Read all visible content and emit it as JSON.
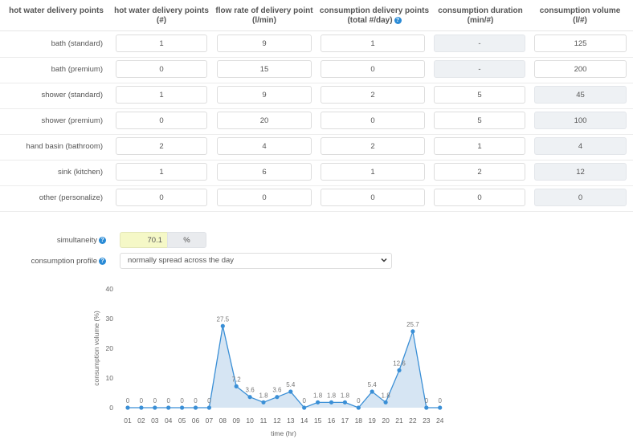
{
  "headers": {
    "col0": "hot water delivery points",
    "col1_l1": "hot water delivery points",
    "col1_l2": "(#)",
    "col2_l1": "flow rate of delivery point",
    "col2_l2": "(l/min)",
    "col3_l1": "consumption delivery points",
    "col3_l2": "(total #/day)",
    "col4_l1": "consumption duration",
    "col4_l2": "(min/#)",
    "col5_l1": "consumption volume",
    "col5_l2": "(l/#)"
  },
  "rows": [
    {
      "label": "bath (standard)",
      "points": "1",
      "flow": "9",
      "consumption": "1",
      "duration": "-",
      "volume": "125"
    },
    {
      "label": "bath (premium)",
      "points": "0",
      "flow": "15",
      "consumption": "0",
      "duration": "-",
      "volume": "200"
    },
    {
      "label": "shower (standard)",
      "points": "1",
      "flow": "9",
      "consumption": "2",
      "duration": "5",
      "volume": "45"
    },
    {
      "label": "shower (premium)",
      "points": "0",
      "flow": "20",
      "consumption": "0",
      "duration": "5",
      "volume": "100"
    },
    {
      "label": "hand basin (bathroom)",
      "points": "2",
      "flow": "4",
      "consumption": "2",
      "duration": "1",
      "volume": "4"
    },
    {
      "label": "sink (kitchen)",
      "points": "1",
      "flow": "6",
      "consumption": "1",
      "duration": "2",
      "volume": "12"
    },
    {
      "label": "other (personalize)",
      "points": "0",
      "flow": "0",
      "consumption": "0",
      "duration": "0",
      "volume": "0"
    }
  ],
  "simultaneity": {
    "label": "simultaneity",
    "value": "70.1",
    "unit": "%"
  },
  "profile": {
    "label": "consumption profile",
    "selected": "normally spread across the day"
  },
  "chart_data": {
    "type": "area",
    "xlabel": "time (hr)",
    "ylabel": "consumption volume (%)",
    "ylim": [
      0,
      40
    ],
    "yticks": [
      0,
      10,
      20,
      30,
      40
    ],
    "categories": [
      "01",
      "02",
      "03",
      "04",
      "05",
      "06",
      "07",
      "08",
      "09",
      "10",
      "11",
      "12",
      "13",
      "14",
      "15",
      "16",
      "17",
      "18",
      "19",
      "20",
      "21",
      "22",
      "23",
      "24"
    ],
    "values": [
      0,
      0,
      0,
      0,
      0,
      0,
      0,
      27.5,
      7.2,
      3.6,
      1.8,
      3.6,
      5.4,
      0,
      1.8,
      1.8,
      1.8,
      0,
      5.4,
      1.8,
      12.6,
      25.7,
      0,
      0
    ],
    "labels": [
      "0",
      "0",
      "0",
      "0",
      "0",
      "0",
      "0",
      "27.5",
      "7.2",
      "3.6",
      "1.8",
      "3.6",
      "5.4",
      "0",
      "1.8",
      "1.8",
      "1.8",
      "0",
      "5.4",
      "1.8",
      "12.6",
      "25.7",
      "0",
      "0"
    ],
    "grid": false,
    "colors": {
      "line": "#3a8fd6",
      "fill": "#cfe1f1"
    }
  }
}
